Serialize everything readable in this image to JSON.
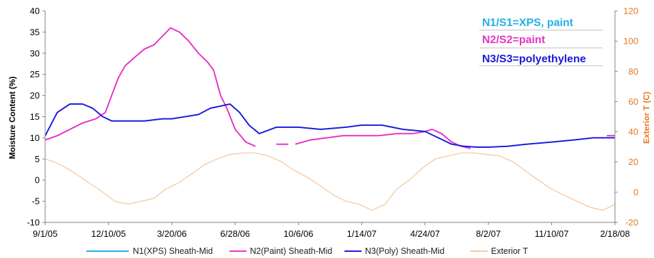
{
  "chart_data": {
    "type": "line",
    "title": "",
    "ylabel_left": "Moisture Content (%)",
    "ylabel_right": "Exterior T (C)",
    "ylim_left": [
      -10,
      40
    ],
    "yticks_left": [
      "-10",
      "-5",
      "0",
      "5",
      "10",
      "15",
      "20",
      "25",
      "30",
      "35",
      "40"
    ],
    "ylim_right": [
      -20,
      120
    ],
    "yticks_right": [
      "-20",
      "0",
      "20",
      "40",
      "60",
      "80",
      "100",
      "120"
    ],
    "x_start": "2005-09-01",
    "x_end": "2008-02-18",
    "xtick_labels": [
      "9/1/05",
      "12/10/05",
      "3/20/06",
      "6/28/06",
      "10/6/06",
      "1/14/07",
      "4/24/07",
      "8/2/07",
      "11/10/07",
      "2/18/08"
    ],
    "gridlines": false,
    "legend_position": "bottom",
    "annotations": [
      {
        "text": "N1/S1=XPS, paint",
        "color": "#1fb0e6"
      },
      {
        "text": "N2/S2=paint",
        "color": "#e633c4"
      },
      {
        "text": "N3/S3=polyethylene",
        "color": "#1a1adf"
      }
    ],
    "series": [
      {
        "name": "N1(XPS) Sheath-Mid",
        "axis": "left",
        "color": "#1fb0e6",
        "x": [],
        "y": []
      },
      {
        "name": "N2(Paint) Sheath-Mid",
        "axis": "left",
        "color": "#e633c4",
        "x": [
          "2005-09-01",
          "2005-09-20",
          "2005-10-10",
          "2005-10-30",
          "2005-11-20",
          "2005-12-05",
          "2005-12-10",
          "2005-12-25",
          "2006-01-05",
          "2006-01-20",
          "2006-02-05",
          "2006-02-20",
          "2006-03-05",
          "2006-03-18",
          "2006-04-01",
          "2006-04-15",
          "2006-05-01",
          "2006-05-15",
          "2006-05-25",
          "2006-06-05",
          "2006-06-15",
          "2006-06-28",
          "2006-07-15",
          "2006-07-30",
          null,
          "2006-09-01",
          "2006-09-20",
          null,
          "2006-10-01",
          "2006-10-25",
          "2006-11-20",
          "2006-12-15",
          "2007-01-14",
          "2007-02-10",
          "2007-03-10",
          "2007-04-05",
          "2007-04-24",
          "2007-05-05",
          "2007-05-20",
          "2007-06-05",
          "2007-06-20",
          "2007-07-05",
          null,
          "2008-02-05",
          "2008-02-18"
        ],
        "y": [
          9.5,
          10.5,
          12,
          13.5,
          14.5,
          16,
          18,
          24,
          27,
          29,
          31,
          32,
          34,
          36,
          35,
          33,
          30,
          28,
          26,
          20,
          17,
          12,
          9,
          8,
          null,
          8.5,
          8.5,
          null,
          8.5,
          9.5,
          10,
          10.5,
          10.5,
          10.5,
          11,
          11,
          11.5,
          12,
          11,
          9,
          8,
          7.5,
          null,
          10.5,
          10.5
        ]
      },
      {
        "name": "N3(Poly) Sheath-Mid",
        "axis": "left",
        "color": "#1a1adf",
        "x": [
          "2005-09-01",
          "2005-09-20",
          "2005-10-10",
          "2005-10-30",
          "2005-11-15",
          "2005-12-01",
          "2005-12-15",
          "2006-01-10",
          "2006-02-05",
          "2006-03-05",
          "2006-03-20",
          "2006-04-10",
          "2006-05-01",
          "2006-05-20",
          "2006-06-05",
          "2006-06-20",
          "2006-07-05",
          "2006-07-20",
          "2006-08-05",
          "2006-09-01",
          "2006-10-06",
          "2006-11-10",
          "2006-12-20",
          "2007-01-14",
          "2007-02-15",
          "2007-03-20",
          "2007-04-24",
          "2007-05-15",
          "2007-06-05",
          "2007-06-25",
          "2007-07-15",
          "2007-08-02",
          "2007-09-01",
          "2007-10-01",
          "2007-11-10",
          "2007-12-15",
          "2008-01-15",
          "2008-02-18"
        ],
        "y": [
          10.5,
          16,
          18,
          18,
          17,
          15,
          14,
          14,
          14,
          14.5,
          14.5,
          15,
          15.5,
          17,
          17.5,
          18,
          16,
          13,
          11,
          12.5,
          12.5,
          12,
          12.5,
          13,
          13,
          12,
          11.5,
          10,
          8.5,
          8,
          7.8,
          7.8,
          8,
          8.5,
          9,
          9.5,
          10,
          10
        ]
      },
      {
        "name": "Exterior T",
        "axis": "right",
        "color": "#f4c7a0",
        "x": [
          "2005-09-01",
          "2005-09-15",
          "2005-10-01",
          "2005-10-20",
          "2005-11-10",
          "2005-12-01",
          "2005-12-20",
          "2006-01-10",
          "2006-01-30",
          "2006-02-20",
          "2006-03-10",
          "2006-03-30",
          "2006-04-20",
          "2006-05-10",
          "2006-05-30",
          "2006-06-20",
          "2006-07-10",
          "2006-07-30",
          "2006-08-20",
          "2006-09-10",
          "2006-10-01",
          "2006-10-20",
          "2006-11-10",
          "2006-12-01",
          "2006-12-20",
          "2007-01-10",
          "2007-01-30",
          "2007-02-20",
          "2007-03-10",
          "2007-03-30",
          "2007-04-20",
          "2007-05-10",
          "2007-05-30",
          "2007-06-20",
          "2007-07-10",
          "2007-07-30",
          "2007-08-20",
          "2007-09-10",
          "2007-09-30",
          "2007-10-20",
          "2007-11-10",
          "2007-11-30",
          "2007-12-20",
          "2008-01-10",
          "2008-01-30",
          "2008-02-18"
        ],
        "y": [
          22,
          20,
          17,
          12,
          6,
          0,
          -6,
          -8,
          -6,
          -4,
          2,
          6,
          12,
          18,
          22,
          25,
          26,
          26,
          24,
          20,
          14,
          10,
          4,
          -2,
          -6,
          -8,
          -12,
          -8,
          2,
          8,
          16,
          22,
          24,
          26,
          26,
          25,
          24,
          20,
          14,
          8,
          2,
          -2,
          -6,
          -10,
          -12,
          -8
        ]
      }
    ]
  },
  "legend": [
    {
      "label": "N1(XPS) Sheath-Mid",
      "color": "#1fb0e6"
    },
    {
      "label": "N2(Paint) Sheath-Mid",
      "color": "#e633c4"
    },
    {
      "label": "N3(Poly) Sheath-Mid",
      "color": "#1a1adf"
    },
    {
      "label": "Exterior T",
      "color": "#f4c7a0"
    }
  ]
}
